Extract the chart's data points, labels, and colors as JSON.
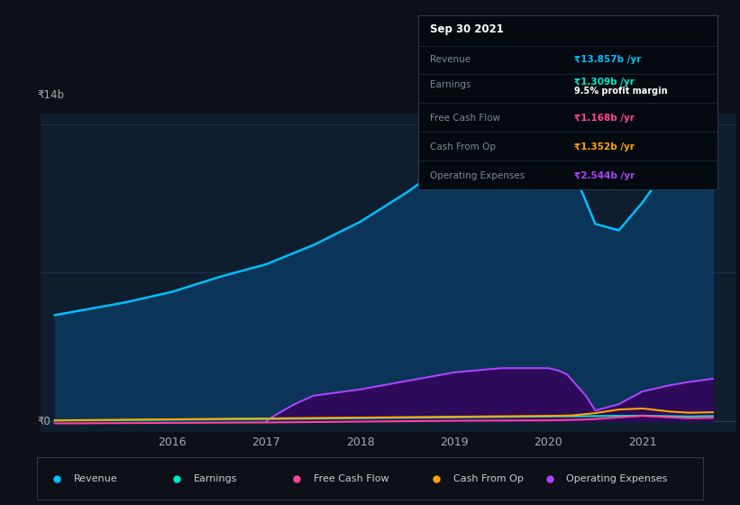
{
  "background_color": "#0d1117",
  "chart_bg_color": "#0e1e2e",
  "ylabel_top": "₹14b",
  "ylabel_bottom": "₹0",
  "x_tick_labels": [
    "2016",
    "2017",
    "2018",
    "2019",
    "2020",
    "2021"
  ],
  "x_tick_positions": [
    2016,
    2017,
    2018,
    2019,
    2020,
    2021
  ],
  "rev_x": [
    2014.75,
    2015.0,
    2015.5,
    2016.0,
    2016.5,
    2017.0,
    2017.5,
    2018.0,
    2018.5,
    2019.0,
    2019.25,
    2019.5,
    2019.75,
    2020.0,
    2020.2,
    2020.5,
    2020.75,
    2021.0,
    2021.5,
    2021.75
  ],
  "rev_y": [
    5.0,
    5.2,
    5.6,
    6.1,
    6.8,
    7.4,
    8.3,
    9.4,
    10.8,
    12.4,
    13.0,
    13.2,
    13.1,
    12.9,
    12.5,
    9.3,
    9.0,
    10.3,
    13.4,
    13.857
  ],
  "ear_x": [
    2014.75,
    2015.0,
    2015.5,
    2016.0,
    2016.5,
    2017.0,
    2017.5,
    2018.0,
    2018.5,
    2019.0,
    2019.5,
    2020.0,
    2020.5,
    2021.0,
    2021.5,
    2021.75
  ],
  "ear_y": [
    0.03,
    0.04,
    0.05,
    0.07,
    0.09,
    0.1,
    0.12,
    0.14,
    0.16,
    0.18,
    0.2,
    0.22,
    0.24,
    0.26,
    0.22,
    0.24
  ],
  "fcf_x": [
    2014.75,
    2015.0,
    2015.5,
    2016.0,
    2016.5,
    2017.0,
    2017.5,
    2018.0,
    2018.5,
    2019.0,
    2019.5,
    2020.0,
    2020.25,
    2020.5,
    2020.75,
    2021.0,
    2021.3,
    2021.5,
    2021.75
  ],
  "fcf_y": [
    -0.1,
    -0.1,
    -0.09,
    -0.08,
    -0.07,
    -0.06,
    -0.04,
    -0.02,
    0.0,
    0.02,
    0.03,
    0.04,
    0.06,
    0.1,
    0.18,
    0.25,
    0.18,
    0.14,
    0.16
  ],
  "cashop_x": [
    2014.75,
    2015.0,
    2015.5,
    2016.0,
    2016.5,
    2017.0,
    2017.5,
    2018.0,
    2018.5,
    2019.0,
    2019.5,
    2020.0,
    2020.25,
    2020.5,
    2020.75,
    2021.0,
    2021.3,
    2021.5,
    2021.75
  ],
  "cashop_y": [
    0.04,
    0.05,
    0.07,
    0.09,
    0.11,
    0.13,
    0.15,
    0.17,
    0.19,
    0.21,
    0.23,
    0.25,
    0.27,
    0.38,
    0.55,
    0.6,
    0.45,
    0.4,
    0.42
  ],
  "opex_x": [
    2017.0,
    2017.1,
    2017.3,
    2017.5,
    2018.0,
    2018.5,
    2019.0,
    2019.5,
    2020.0,
    2020.1,
    2020.2,
    2020.4,
    2020.5,
    2020.75,
    2021.0,
    2021.3,
    2021.5,
    2021.75
  ],
  "opex_y": [
    0.0,
    0.3,
    0.8,
    1.2,
    1.5,
    1.9,
    2.3,
    2.5,
    2.5,
    2.4,
    2.2,
    1.2,
    0.5,
    0.8,
    1.4,
    1.7,
    1.85,
    2.0
  ],
  "revenue_color": "#00bfff",
  "earnings_color": "#00e5cc",
  "fcf_color": "#ff4499",
  "cashop_color": "#ffa500",
  "opex_color": "#aa44ff",
  "revenue_fill": "#0a3558",
  "opex_fill": "#2d0a5a",
  "info_title": "Sep 30 2021",
  "info_revenue_label": "Revenue",
  "info_revenue_val": "₹13.857b /yr",
  "info_earnings_label": "Earnings",
  "info_earnings_val": "₹1.309b /yr",
  "info_margin": "9.5% profit margin",
  "info_fcf_label": "Free Cash Flow",
  "info_fcf_val": "₹1.168b /yr",
  "info_cashop_label": "Cash From Op",
  "info_cashop_val": "₹1.352b /yr",
  "info_opex_label": "Operating Expenses",
  "info_opex_val": "₹2.544b /yr",
  "legend_items": [
    "Revenue",
    "Earnings",
    "Free Cash Flow",
    "Cash From Op",
    "Operating Expenses"
  ],
  "legend_colors": [
    "#00bfff",
    "#00e5cc",
    "#ff4499",
    "#ffa500",
    "#aa44ff"
  ]
}
